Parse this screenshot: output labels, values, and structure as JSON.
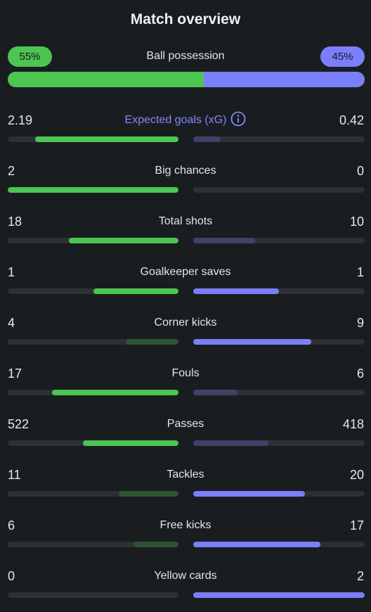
{
  "title": "Match overview",
  "colors": {
    "home_strong": "#4cc552",
    "home_weak": "#2e5435",
    "away_strong": "#7b7ffb",
    "away_weak": "#3d4466"
  },
  "possession": {
    "label": "Ball possession",
    "home_text": "55%",
    "away_text": "45%",
    "home_pct": 55,
    "away_pct": 45
  },
  "stats": [
    {
      "label": "Expected goals (xG)",
      "home": "2.19",
      "away": "0.42",
      "home_frac": 0.84,
      "away_frac": 0.16,
      "highlight": true,
      "info": true
    },
    {
      "label": "Big chances",
      "home": "2",
      "away": "0",
      "home_frac": 1.0,
      "away_frac": 0.0
    },
    {
      "label": "Total shots",
      "home": "18",
      "away": "10",
      "home_frac": 0.64,
      "away_frac": 0.36
    },
    {
      "label": "Goalkeeper saves",
      "home": "1",
      "away": "1",
      "home_frac": 0.5,
      "away_frac": 0.5
    },
    {
      "label": "Corner kicks",
      "home": "4",
      "away": "9",
      "home_frac": 0.31,
      "away_frac": 0.69
    },
    {
      "label": "Fouls",
      "home": "17",
      "away": "6",
      "home_frac": 0.74,
      "away_frac": 0.26
    },
    {
      "label": "Passes",
      "home": "522",
      "away": "418",
      "home_frac": 0.56,
      "away_frac": 0.44
    },
    {
      "label": "Tackles",
      "home": "11",
      "away": "20",
      "home_frac": 0.35,
      "away_frac": 0.65
    },
    {
      "label": "Free kicks",
      "home": "6",
      "away": "17",
      "home_frac": 0.26,
      "away_frac": 0.74
    },
    {
      "label": "Yellow cards",
      "home": "0",
      "away": "2",
      "home_frac": 0.0,
      "away_frac": 1.0
    }
  ]
}
